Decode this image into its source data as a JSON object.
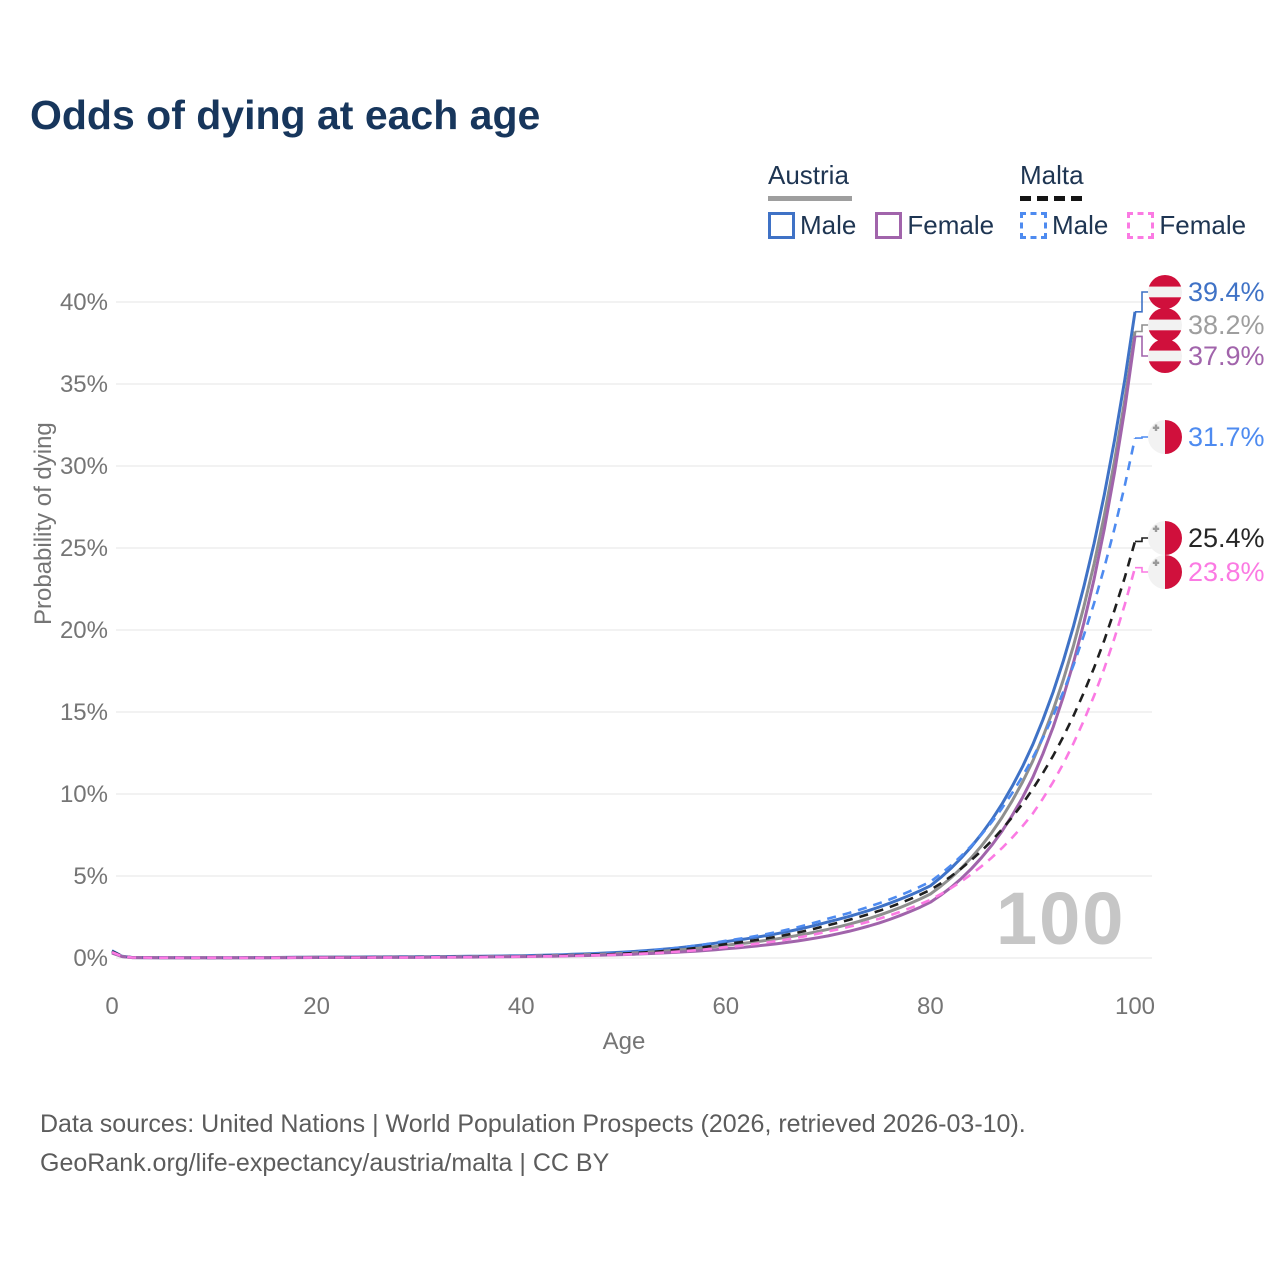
{
  "title": "Odds of dying at each age",
  "watermark_age": "100",
  "legend": {
    "austria": {
      "title": "Austria",
      "male": "Male",
      "female": "Female"
    },
    "malta": {
      "title": "Malta",
      "male": "Male",
      "female": "Female"
    }
  },
  "footer": {
    "line1": "Data sources: United Nations | World Population Prospects (2026, retrieved 2026-03-10).",
    "line2": "GeoRank.org/life-expectancy/austria/malta | CC BY"
  },
  "colors": {
    "title_text": "#17365c",
    "legend_text": "#1e3552",
    "axis_text": "#757575",
    "gridline": "#ebebeb",
    "watermark": "#c6c6c6",
    "footer_text": "#5c5c5c",
    "flag_red": "#d0103c",
    "flag_white": "#f2f2f2",
    "malta_cross_gray": "#9a9a9a"
  },
  "chart_data": {
    "type": "line",
    "title": "Odds of dying at each age",
    "xlabel": "Age",
    "ylabel": "Probability of dying",
    "xlim": [
      0,
      100
    ],
    "ylim_pct": [
      0,
      40
    ],
    "grid": "horizontal-only",
    "legend_position": "top-right",
    "x_ticks": [
      {
        "value": 0,
        "label": "0"
      },
      {
        "value": 20,
        "label": "20"
      },
      {
        "value": 40,
        "label": "40"
      },
      {
        "value": 60,
        "label": "60"
      },
      {
        "value": 80,
        "label": "80"
      },
      {
        "value": 100,
        "label": "100"
      }
    ],
    "y_ticks": [
      {
        "value": 0,
        "label": "0%"
      },
      {
        "value": 5,
        "label": "5%"
      },
      {
        "value": 10,
        "label": "10%"
      },
      {
        "value": 15,
        "label": "15%"
      },
      {
        "value": 20,
        "label": "20%"
      },
      {
        "value": 25,
        "label": "25%"
      },
      {
        "value": 30,
        "label": "30%"
      },
      {
        "value": 35,
        "label": "35%"
      },
      {
        "value": 40,
        "label": "40%"
      }
    ],
    "knot_ages": [
      0,
      2,
      10,
      20,
      30,
      40,
      50,
      60,
      70,
      80,
      90,
      100
    ],
    "series": [
      {
        "id": "austria-male",
        "name": "Austria Male",
        "country": "Austria",
        "sex": "male",
        "color": "#3f72c6",
        "dashed": false,
        "values_pct": [
          0.36,
          0.03,
          0.012,
          0.055,
          0.075,
          0.14,
          0.36,
          1.0,
          2.2,
          4.4,
          13.0,
          39.4
        ],
        "end_value_pct": 39.4
      },
      {
        "id": "austria-overall",
        "name": "Austria Overall",
        "country": "Austria",
        "sex": "both",
        "color": "#8f8f8f",
        "dashed": false,
        "values_pct": [
          0.33,
          0.027,
          0.011,
          0.042,
          0.057,
          0.11,
          0.28,
          0.78,
          1.75,
          3.9,
          12.0,
          38.2
        ],
        "end_value_pct": 38.2
      },
      {
        "id": "austria-female",
        "name": "Austria Female",
        "country": "Austria",
        "sex": "female",
        "color": "#a164ab",
        "dashed": false,
        "values_pct": [
          0.3,
          0.024,
          0.01,
          0.028,
          0.038,
          0.085,
          0.21,
          0.56,
          1.35,
          3.4,
          11.0,
          37.9
        ],
        "end_value_pct": 37.9
      },
      {
        "id": "malta-male",
        "name": "Malta Male",
        "country": "Malta",
        "sex": "male",
        "color": "#4e8bf0",
        "dashed": true,
        "values_pct": [
          0.46,
          0.032,
          0.012,
          0.048,
          0.068,
          0.125,
          0.34,
          1.05,
          2.4,
          4.65,
          12.2,
          31.7
        ],
        "end_value_pct": 31.7
      },
      {
        "id": "malta-overall",
        "name": "Malta Overall",
        "country": "Malta",
        "sex": "both",
        "color": "#1f1f1f",
        "dashed": true,
        "values_pct": [
          0.41,
          0.028,
          0.011,
          0.038,
          0.052,
          0.1,
          0.27,
          0.85,
          2.0,
          4.15,
          10.3,
          25.4
        ],
        "end_value_pct": 25.4
      },
      {
        "id": "malta-female",
        "name": "Malta Female",
        "country": "Malta",
        "sex": "female",
        "color": "#fb7ae3",
        "dashed": true,
        "values_pct": [
          0.36,
          0.025,
          0.01,
          0.028,
          0.038,
          0.085,
          0.215,
          0.66,
          1.62,
          3.55,
          8.8,
          23.8
        ],
        "end_value_pct": 23.8
      }
    ],
    "end_labels": [
      {
        "text": "39.4%",
        "flag": "austria",
        "color": "#3f72c6"
      },
      {
        "text": "38.2%",
        "flag": "austria",
        "color": "#9e9e9e"
      },
      {
        "text": "37.9%",
        "flag": "austria",
        "color": "#a164ab"
      },
      {
        "text": "31.7%",
        "flag": "malta",
        "color": "#4e8bf0"
      },
      {
        "text": "25.4%",
        "flag": "malta",
        "color": "#262626"
      },
      {
        "text": "23.8%",
        "flag": "malta",
        "color": "#fb7ae3"
      }
    ]
  }
}
